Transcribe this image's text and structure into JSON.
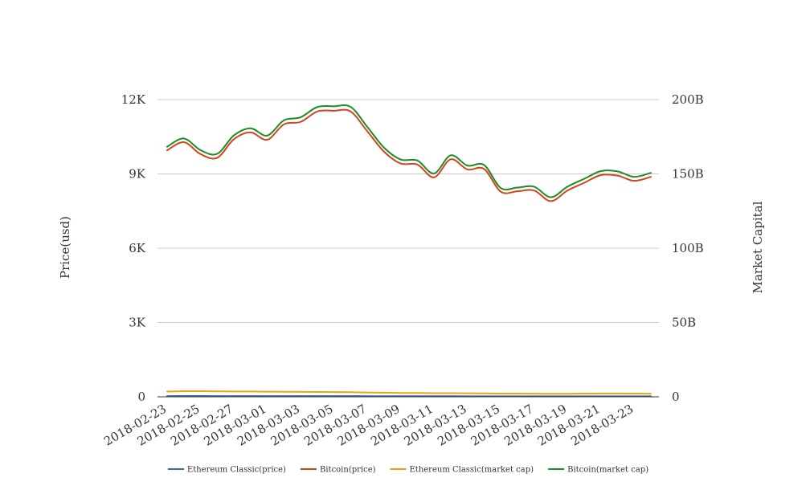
{
  "chart_data": {
    "type": "line",
    "title": "",
    "xlabel": "",
    "ylabel": "Price(usd)",
    "y2label": "Market Capital",
    "x": [
      "2018-02-23",
      "2018-02-24",
      "2018-02-25",
      "2018-02-26",
      "2018-02-27",
      "2018-02-28",
      "2018-03-01",
      "2018-03-02",
      "2018-03-03",
      "2018-03-04",
      "2018-03-05",
      "2018-03-06",
      "2018-03-07",
      "2018-03-08",
      "2018-03-09",
      "2018-03-10",
      "2018-03-11",
      "2018-03-12",
      "2018-03-13",
      "2018-03-14",
      "2018-03-15",
      "2018-03-16",
      "2018-03-17",
      "2018-03-18",
      "2018-03-19",
      "2018-03-20",
      "2018-03-21",
      "2018-03-22",
      "2018-03-23",
      "2018-03-24"
    ],
    "x_tick_labels": [
      "2018-02-23",
      "2018-02-25",
      "2018-02-27",
      "2018-03-01",
      "2018-03-03",
      "2018-03-05",
      "2018-03-07",
      "2018-03-09",
      "2018-03-11",
      "2018-03-13",
      "2018-03-15",
      "2018-03-17",
      "2018-03-19",
      "2018-03-21",
      "2018-03-23"
    ],
    "ylim": [
      0,
      12000
    ],
    "y_ticks": [
      0,
      3000,
      6000,
      9000,
      12000
    ],
    "y_tick_labels": [
      "0",
      "3K",
      "6K",
      "9K",
      "12K"
    ],
    "y2lim": [
      0,
      200000000000
    ],
    "y2_ticks": [
      0,
      50000000000,
      100000000000,
      150000000000,
      200000000000
    ],
    "y2_tick_labels": [
      "0",
      "50B",
      "100B",
      "150B",
      "200B"
    ],
    "grid": true,
    "legend_position": "bottom",
    "series": [
      {
        "name": "Ethereum Classic(price)",
        "axis": "left",
        "color": "#2f6ca3",
        "values": [
          30,
          31,
          31,
          30,
          30,
          30,
          29,
          29,
          28,
          28,
          28,
          27,
          26,
          25,
          24,
          24,
          23,
          23,
          22,
          21,
          20,
          20,
          19,
          19,
          19,
          20,
          20,
          20,
          20,
          19
        ]
      },
      {
        "name": "Bitcoin(price)",
        "axis": "left",
        "color": "#d2441c",
        "values": [
          9950,
          10280,
          9800,
          9650,
          10400,
          10680,
          10380,
          11000,
          11100,
          11520,
          11550,
          11520,
          10720,
          9900,
          9420,
          9380,
          8860,
          9590,
          9180,
          9200,
          8280,
          8300,
          8330,
          7900,
          8330,
          8640,
          8950,
          8930,
          8720,
          8880
        ]
      },
      {
        "name": "Ethereum Classic(market cap)",
        "axis": "right",
        "color": "#eda40f",
        "values": [
          3500000000,
          3750000000,
          3800000000,
          3650000000,
          3600000000,
          3550000000,
          3450000000,
          3400000000,
          3300000000,
          3250000000,
          3200000000,
          3100000000,
          2900000000,
          2750000000,
          2600000000,
          2550000000,
          2450000000,
          2400000000,
          2350000000,
          2300000000,
          2150000000,
          2150000000,
          2100000000,
          2000000000,
          2050000000,
          2150000000,
          2200000000,
          2200000000,
          2150000000,
          2100000000
        ]
      },
      {
        "name": "Bitcoin(market cap)",
        "axis": "right",
        "color": "#1f8b24",
        "values": [
          168300000000,
          173800000000,
          166000000000,
          163500000000,
          175900000000,
          180700000000,
          175800000000,
          186100000000,
          188100000000,
          195000000000,
          195500000000,
          195100000000,
          181600000000,
          167700000000,
          159700000000,
          159000000000,
          150300000000,
          162500000000,
          155600000000,
          156000000000,
          140500000000,
          140800000000,
          141400000000,
          134300000000,
          141400000000,
          146700000000,
          151900000000,
          151700000000,
          148000000000,
          150700000000
        ]
      }
    ]
  }
}
